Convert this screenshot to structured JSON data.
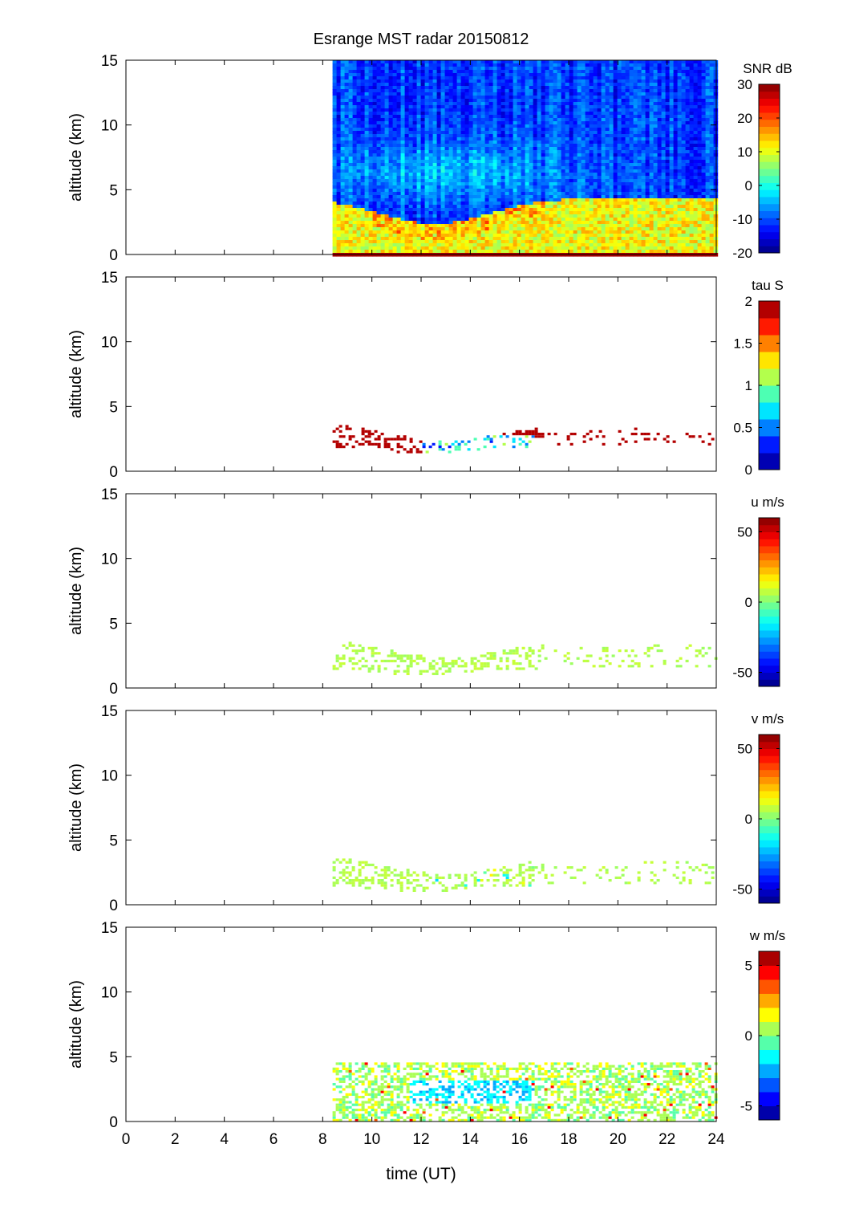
{
  "title": "Esrange MST radar 20150812",
  "xlabel": "time (UT)",
  "x_ticks": [
    0,
    2,
    4,
    6,
    8,
    10,
    12,
    14,
    16,
    18,
    20,
    22,
    24
  ],
  "chart_data": [
    {
      "type": "heatmap",
      "panel": "SNR",
      "ylabel": "altitude (km)",
      "xlim": [
        0,
        24
      ],
      "ylim": [
        0,
        15
      ],
      "y_ticks": [
        0,
        5,
        10,
        15
      ],
      "data_time_range": [
        8.4,
        24
      ],
      "colorbar": {
        "label": "SNR dB",
        "range": [
          -20,
          30
        ],
        "ticks": [
          30,
          20,
          10,
          0,
          -10,
          -20
        ],
        "continuous": true,
        "levels": 24
      }
    },
    {
      "type": "heatmap",
      "panel": "tau",
      "ylabel": "altitude (km)",
      "xlim": [
        0,
        24
      ],
      "ylim": [
        0,
        15
      ],
      "y_ticks": [
        0,
        5,
        10,
        15
      ],
      "data_time_range": [
        8.4,
        24
      ],
      "colorbar": {
        "label": "tau S",
        "range": [
          0,
          2
        ],
        "ticks": [
          2,
          1.5,
          1,
          0.5,
          0
        ],
        "continuous": false,
        "levels": 10
      }
    },
    {
      "type": "heatmap",
      "panel": "u",
      "ylabel": "altitude (km)",
      "xlim": [
        0,
        24
      ],
      "ylim": [
        0,
        15
      ],
      "y_ticks": [
        0,
        5,
        10,
        15
      ],
      "data_time_range": [
        8.4,
        24
      ],
      "colorbar": {
        "label": "u m/s",
        "range": [
          -60,
          60
        ],
        "ticks": [
          50,
          0,
          -50
        ],
        "continuous": true,
        "levels": 24
      }
    },
    {
      "type": "heatmap",
      "panel": "v",
      "ylabel": "altitude (km)",
      "xlim": [
        0,
        24
      ],
      "ylim": [
        0,
        15
      ],
      "y_ticks": [
        0,
        5,
        10,
        15
      ],
      "data_time_range": [
        8.4,
        24
      ],
      "colorbar": {
        "label": "v m/s",
        "range": [
          -60,
          60
        ],
        "ticks": [
          50,
          0,
          -50
        ],
        "continuous": true,
        "levels": 24
      }
    },
    {
      "type": "heatmap",
      "panel": "w",
      "ylabel": "altitude (km)",
      "xlim": [
        0,
        24
      ],
      "ylim": [
        0,
        15
      ],
      "y_ticks": [
        0,
        5,
        10,
        15
      ],
      "data_time_range": [
        8.4,
        24
      ],
      "colorbar": {
        "label": "w m/s",
        "range": [
          -6,
          6
        ],
        "ticks": [
          5,
          0,
          -5
        ],
        "continuous": false,
        "levels": 12
      }
    }
  ]
}
